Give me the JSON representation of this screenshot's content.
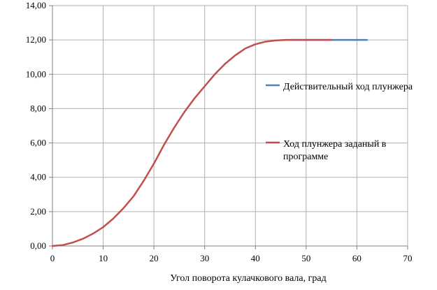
{
  "chart_data": {
    "type": "line",
    "title": "",
    "xlabel": "Угол поворота кулачкового вала, град",
    "ylabel": "",
    "xlim": [
      0,
      70
    ],
    "ylim": [
      0,
      14
    ],
    "x_ticks": [
      "0",
      "10",
      "20",
      "30",
      "40",
      "50",
      "60",
      "70"
    ],
    "y_ticks": [
      "0,00",
      "2,00",
      "4,00",
      "6,00",
      "8,00",
      "10,00",
      "12,00",
      "14,00"
    ],
    "grid": true,
    "legend_position": "right",
    "series": [
      {
        "name": "Действительный ход плунжера",
        "color": "#4f81bd",
        "x": [
          47,
          50,
          55,
          60,
          62
        ],
        "y": [
          12,
          12,
          12,
          12,
          12
        ]
      },
      {
        "name": "Ход плунжера заданый в программе",
        "color": "#c0504d",
        "x": [
          0,
          2,
          4,
          6,
          8,
          10,
          12,
          14,
          16,
          18,
          20,
          22,
          24,
          26,
          28,
          30,
          32,
          34,
          36,
          38,
          40,
          42,
          44,
          46,
          47,
          50,
          55
        ],
        "y": [
          0,
          0.05,
          0.2,
          0.42,
          0.72,
          1.1,
          1.6,
          2.2,
          2.9,
          3.8,
          4.8,
          5.9,
          6.9,
          7.8,
          8.6,
          9.3,
          10.0,
          10.6,
          11.1,
          11.5,
          11.75,
          11.9,
          11.97,
          12.0,
          12.0,
          12.0,
          12.0
        ]
      }
    ]
  }
}
